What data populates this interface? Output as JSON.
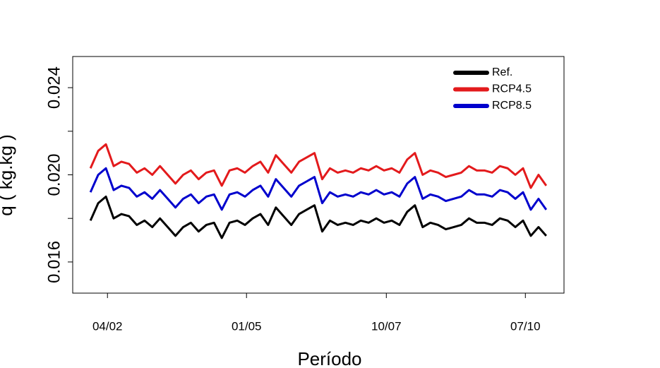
{
  "chart_data": {
    "type": "line",
    "xlabel": "Período",
    "ylabel": "q ( kg.kg )",
    "x": [
      0,
      1,
      2,
      3,
      4,
      5,
      6,
      7,
      8,
      9,
      10,
      11,
      12,
      13,
      14,
      15,
      16,
      17,
      18,
      19,
      20,
      21,
      22,
      23,
      24,
      25,
      26,
      27,
      28,
      29,
      30,
      31,
      32,
      33,
      34,
      35,
      36,
      37,
      38,
      39,
      40,
      41,
      42,
      43,
      44,
      45,
      46,
      47,
      48,
      49,
      50,
      51,
      52,
      53,
      54,
      55,
      56,
      57,
      58,
      59
    ],
    "series": [
      {
        "name": "Ref.",
        "color": "#000000",
        "values": [
          0.0179,
          0.0187,
          0.019,
          0.018,
          0.0182,
          0.0181,
          0.0177,
          0.0179,
          0.0176,
          0.018,
          0.0176,
          0.0172,
          0.0176,
          0.0178,
          0.0174,
          0.0177,
          0.0178,
          0.0171,
          0.0178,
          0.0179,
          0.0177,
          0.018,
          0.0182,
          0.0177,
          0.0185,
          0.0181,
          0.0177,
          0.0182,
          0.0184,
          0.0186,
          0.0174,
          0.0179,
          0.0177,
          0.0178,
          0.0177,
          0.0179,
          0.0178,
          0.018,
          0.0178,
          0.0179,
          0.0177,
          0.0183,
          0.0186,
          0.0176,
          0.0178,
          0.0177,
          0.0175,
          0.0176,
          0.0177,
          0.018,
          0.0178,
          0.0178,
          0.0177,
          0.018,
          0.0179,
          0.0176,
          0.0179,
          0.0172,
          0.0176,
          0.0172
        ]
      },
      {
        "name": "RCP4.5",
        "color": "#e31a1c",
        "values": [
          0.0203,
          0.0211,
          0.0214,
          0.0204,
          0.0206,
          0.0205,
          0.0201,
          0.0203,
          0.02,
          0.0204,
          0.02,
          0.0196,
          0.02,
          0.0202,
          0.0198,
          0.0201,
          0.0202,
          0.0195,
          0.0202,
          0.0203,
          0.0201,
          0.0204,
          0.0206,
          0.0201,
          0.0209,
          0.0205,
          0.0201,
          0.0206,
          0.0208,
          0.021,
          0.0198,
          0.0203,
          0.0201,
          0.0202,
          0.0201,
          0.0203,
          0.0202,
          0.0204,
          0.0202,
          0.0203,
          0.0201,
          0.0207,
          0.021,
          0.02,
          0.0202,
          0.0201,
          0.0199,
          0.02,
          0.0201,
          0.0204,
          0.0202,
          0.0202,
          0.0201,
          0.0204,
          0.0203,
          0.02,
          0.0203,
          0.0194,
          0.02,
          0.0195
        ]
      },
      {
        "name": "RCP8.5",
        "color": "#0000cd",
        "values": [
          0.0192,
          0.02,
          0.0203,
          0.0193,
          0.0195,
          0.0194,
          0.019,
          0.0192,
          0.0189,
          0.0193,
          0.0189,
          0.0185,
          0.0189,
          0.0191,
          0.0187,
          0.019,
          0.0191,
          0.0184,
          0.0191,
          0.0192,
          0.019,
          0.0193,
          0.0195,
          0.019,
          0.0198,
          0.0194,
          0.019,
          0.0195,
          0.0197,
          0.0199,
          0.0187,
          0.0192,
          0.019,
          0.0191,
          0.019,
          0.0192,
          0.0191,
          0.0193,
          0.0191,
          0.0192,
          0.019,
          0.0196,
          0.0199,
          0.0189,
          0.0191,
          0.019,
          0.0188,
          0.0189,
          0.019,
          0.0193,
          0.0191,
          0.0191,
          0.019,
          0.0193,
          0.0192,
          0.0189,
          0.0192,
          0.0184,
          0.0189,
          0.0184
        ]
      }
    ],
    "xlim": [
      -2.3,
      61.3
    ],
    "xticks": [
      {
        "value": 2.2,
        "label": "04/02"
      },
      {
        "value": 20.2,
        "label": "01/05"
      },
      {
        "value": 38.3,
        "label": "10/07"
      },
      {
        "value": 56.3,
        "label": "07/10"
      }
    ],
    "ylim": [
      0.01457,
      0.02543
    ],
    "yticks": [
      0.016,
      {
        "value": 0.02,
        "label": "0.020"
      },
      0.024
    ],
    "yminor_ticks": [
      0.018,
      0.022
    ],
    "legend": "top-right"
  }
}
